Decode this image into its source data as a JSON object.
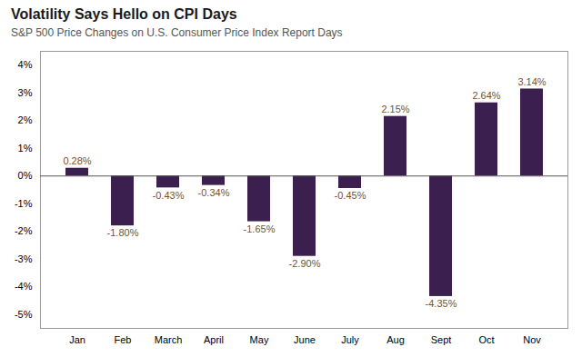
{
  "chart_data": {
    "type": "bar",
    "title": "Volatility Says Hello on CPI Days",
    "subtitle": "S&P 500 Price Changes on U.S. Consumer Price Index Report Days",
    "categories": [
      "Jan",
      "Feb",
      "March",
      "April",
      "May",
      "June",
      "July",
      "Aug",
      "Sept",
      "Oct",
      "Nov"
    ],
    "values": [
      0.28,
      -1.8,
      -0.43,
      -0.34,
      -1.65,
      -2.9,
      -0.45,
      2.15,
      -4.35,
      2.64,
      3.14
    ],
    "value_labels": [
      "0.28%",
      "-1.80%",
      "-0.43%",
      "-0.34%",
      "-1.65%",
      "-2.90%",
      "-0.45%",
      "2.15%",
      "-4.35%",
      "2.64%",
      "3.14%"
    ],
    "data_labels": true,
    "color": "#3B1F4E",
    "ylim": [
      -5.5,
      4.5
    ],
    "yticks": [
      {
        "value": -5,
        "label": "-5%"
      },
      {
        "value": -4,
        "label": "-4%"
      },
      {
        "value": -3,
        "label": "-3%"
      },
      {
        "value": -2,
        "label": "-2%"
      },
      {
        "value": -1,
        "label": "-1%"
      },
      {
        "value": 0,
        "label": "0%"
      },
      {
        "value": 1,
        "label": "1%"
      },
      {
        "value": 2,
        "label": "2%"
      },
      {
        "value": 3,
        "label": "3%"
      },
      {
        "value": 4,
        "label": "4%"
      }
    ],
    "grid": false
  }
}
